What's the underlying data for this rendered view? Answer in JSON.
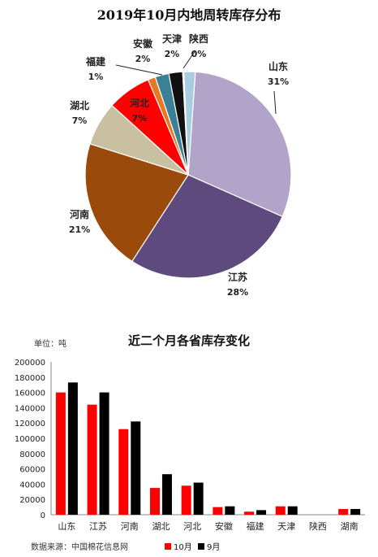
{
  "chart_data": [
    {
      "type": "pie",
      "title": "2019年10月内地周转库存分布",
      "slices": [
        {
          "name": "山东",
          "label": "31%",
          "value": 31,
          "color": "#b2a3c9"
        },
        {
          "name": "江苏",
          "label": "28%",
          "value": 28,
          "color": "#5e4a7d"
        },
        {
          "name": "河南",
          "label": "21%",
          "value": 21,
          "color": "#9a4a0a"
        },
        {
          "name": "湖北",
          "label": "7%",
          "value": 7,
          "color": "#c8c0a0"
        },
        {
          "name": "河北",
          "label": "7%",
          "value": 7,
          "color": "#ff0000"
        },
        {
          "name": "福建",
          "label": "1%",
          "value": 1.2,
          "color": "#e87722"
        },
        {
          "name": "安徽",
          "label": "2%",
          "value": 2.2,
          "color": "#3b8097"
        },
        {
          "name": "天津",
          "label": "2%",
          "value": 2.2,
          "color": "#111111"
        },
        {
          "name": "陕西",
          "label": "0%",
          "value": 0.2,
          "color": "#a0d4f0"
        },
        {
          "name": "",
          "label": "",
          "value": 1.8,
          "color": "#a8cde0"
        }
      ]
    },
    {
      "type": "bar",
      "title": "近二个月各省库存变化",
      "unit_label": "单位：吨",
      "categories": [
        "山东",
        "江苏",
        "河南",
        "湖北",
        "河北",
        "安徽",
        "福建",
        "天津",
        "陕西",
        "湖南"
      ],
      "series": [
        {
          "name": "10月",
          "color": "#ff0000",
          "values": [
            160000,
            144000,
            112000,
            35000,
            38000,
            10000,
            4000,
            11000,
            0,
            7500
          ]
        },
        {
          "name": "9月",
          "color": "#000000",
          "values": [
            173000,
            160000,
            122000,
            53000,
            42000,
            11000,
            6000,
            11000,
            0,
            7500
          ]
        }
      ],
      "y_ticks": [
        "200000",
        "180000",
        "160000",
        "140000",
        "120000",
        "100000",
        "80000",
        "60000",
        "40000",
        "20000",
        "0"
      ],
      "ylim": [
        0,
        200000
      ],
      "grid": false,
      "legend_position": "bottom",
      "source": "数据来源：中国棉花信息网"
    }
  ]
}
